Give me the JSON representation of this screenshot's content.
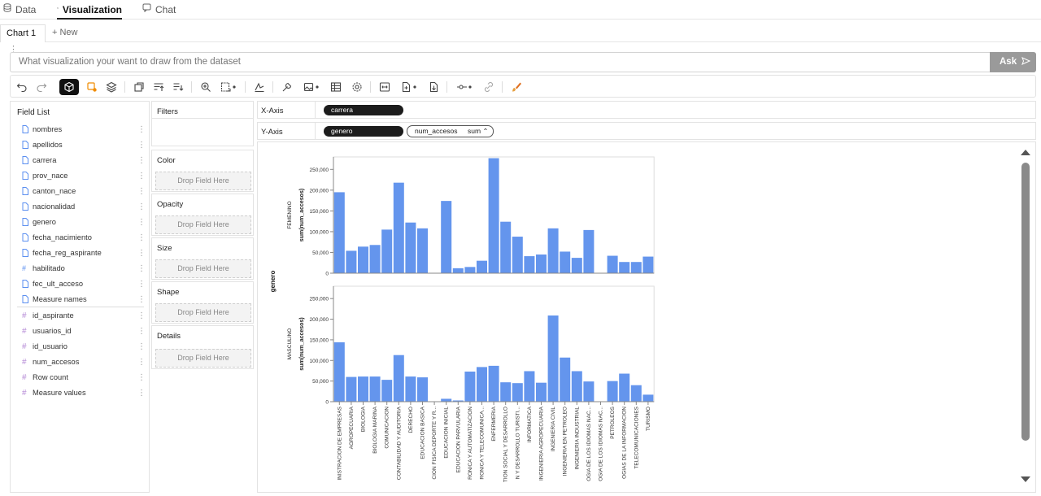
{
  "tabs": [
    {
      "label": "Data",
      "icon": "database-icon"
    },
    {
      "label": "Visualization",
      "icon": "chart-icon"
    },
    {
      "label": "Chat",
      "icon": "chat-icon"
    }
  ],
  "chart_tabs": {
    "active_label": "Chart 1",
    "new_label": "+ New"
  },
  "ask": {
    "placeholder": "What visualization your want to draw from the dataset",
    "button_label": "Ask"
  },
  "toolbar": {
    "buttons": [
      "undo-icon",
      "redo-icon",
      "cube-icon",
      "brush-icon",
      "layers-icon",
      "pivot-icon",
      "sort-asc-icon",
      "sort-desc-icon",
      "zoom-icon",
      "resize-icon",
      "line-chart-icon",
      "wrench-icon",
      "image-icon",
      "table-icon",
      "gear-icon",
      "fit-icon",
      "add-file-icon",
      "download-icon",
      "connect-icon",
      "link-icon",
      "paint-icon"
    ]
  },
  "field_list": {
    "title": "Field List",
    "dimensions": [
      {
        "name": "nombres",
        "kind": "text"
      },
      {
        "name": "apellidos",
        "kind": "text"
      },
      {
        "name": "carrera",
        "kind": "text"
      },
      {
        "name": "prov_nace",
        "kind": "text"
      },
      {
        "name": "canton_nace",
        "kind": "text"
      },
      {
        "name": "nacionalidad",
        "kind": "text"
      },
      {
        "name": "genero",
        "kind": "text"
      },
      {
        "name": "fecha_nacimiento",
        "kind": "text"
      },
      {
        "name": "fecha_reg_aspirante",
        "kind": "text"
      },
      {
        "name": "habilitado",
        "kind": "num"
      },
      {
        "name": "fec_ult_acceso",
        "kind": "text"
      },
      {
        "name": "Measure names",
        "kind": "text"
      }
    ],
    "measures": [
      {
        "name": "id_aspirante",
        "kind": "measure"
      },
      {
        "name": "usuarios_id",
        "kind": "measure"
      },
      {
        "name": "id_usuario",
        "kind": "measure"
      },
      {
        "name": "num_accesos",
        "kind": "measure"
      },
      {
        "name": "Row count",
        "kind": "measure"
      },
      {
        "name": "Measure values",
        "kind": "measure"
      }
    ]
  },
  "encodings": {
    "filters": "Filters",
    "color": "Color",
    "opacity": "Opacity",
    "size": "Size",
    "shape": "Shape",
    "details": "Details",
    "drop_text": "Drop Field Here"
  },
  "axes": {
    "x_label": "X-Axis",
    "x_field": "carrera",
    "y_label": "Y-Axis",
    "y_field": "genero",
    "y_measure": "num_accesos",
    "y_agg": "sum"
  },
  "colors": {
    "bar": "#6495ed",
    "pill_dark": "#1c1c1c"
  },
  "chart_data": {
    "type": "bar",
    "row_facet_label": "genero",
    "ylabel": "sum(num_accesos)",
    "ylim": [
      0,
      280000
    ],
    "yticks": [
      "0",
      "50,000",
      "100,000",
      "150,000",
      "200,000",
      "250,000"
    ],
    "grid": false,
    "categories": [
      "INISTRACION DE EMPRESAS",
      "AGROPECUARIA",
      "BIOLOGIA",
      "BIOLOGIA MARINA",
      "COMUNICACION",
      "CONTABILIDAD Y AUDITORIA",
      "DERECHO",
      "EDUCACION BASICA",
      "CION FISICA DEPORTE Y R...",
      "EDUCACION INICIAL",
      "EDUCACION PARVULARIA",
      "RONICA Y AUTOMATIZACION",
      "RONICA Y TELECOMUNICA...",
      "ENFERMERIA",
      "TION SOCIAL Y DESARROLLO",
      "N Y DESARROLLO TURISTI...",
      "INFORMATICA",
      "INGENIERIA AGROPECUARIA",
      "INGENIERIA CIVIL",
      "INGENIERIA EN PETROLEO",
      "INGENIERIA INDUSTRIAL",
      "OGIA DE LOS IDIOMAS NAC...",
      "OGIA DE LOS IDIOMAS NAC...",
      "PETROLEOS",
      "OGIAS DE LA INFORMACION",
      "TELECOMUNICACIONES",
      "TURISMO"
    ],
    "series": [
      {
        "name": "FEMENINO",
        "values": [
          195000,
          54000,
          64000,
          68000,
          105000,
          218000,
          122000,
          108000,
          0,
          174000,
          12000,
          15000,
          30000,
          277000,
          124000,
          88000,
          41000,
          45000,
          108000,
          52000,
          37000,
          104000,
          0,
          42000,
          27000,
          27000,
          40000
        ]
      },
      {
        "name": "MASCULINO",
        "values": [
          144000,
          60000,
          61000,
          61000,
          53000,
          113000,
          61000,
          59000,
          0,
          7000,
          3000,
          73000,
          84000,
          87000,
          47000,
          45000,
          74000,
          46000,
          209000,
          107000,
          74000,
          49000,
          0,
          50000,
          68000,
          40000,
          17000
        ]
      }
    ]
  }
}
